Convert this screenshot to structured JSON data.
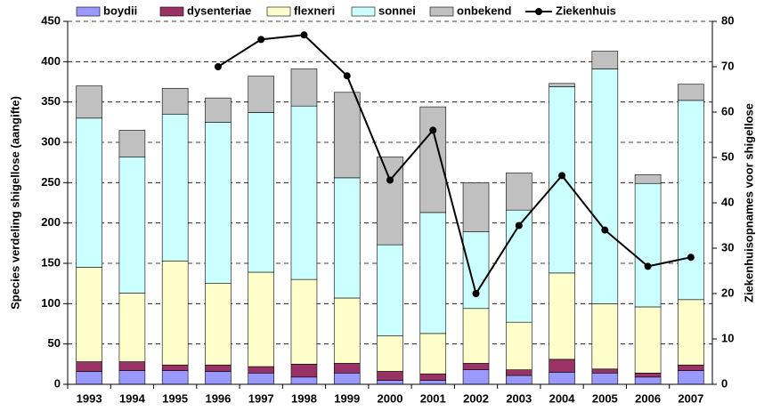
{
  "chart_data": {
    "type": "bar",
    "y_label": "Species verdeling shigellose (aangifte)",
    "y2_label": "Ziekenhuisopnames voor shigellose",
    "categories": [
      "1993",
      "1994",
      "1995",
      "1996",
      "1997",
      "1998",
      "1999",
      "2000",
      "2001",
      "2002",
      "2003",
      "2004",
      "2005",
      "2006",
      "2007"
    ],
    "series": [
      {
        "name": "boydii",
        "color": "#9999ff",
        "values": [
          16,
          17,
          17,
          16,
          14,
          9,
          14,
          5,
          5,
          18,
          11,
          15,
          14,
          9,
          17
        ]
      },
      {
        "name": "dysenteriae",
        "color": "#993366",
        "values": [
          12,
          11,
          7,
          8,
          8,
          16,
          12,
          11,
          8,
          8,
          7,
          16,
          5,
          5,
          7
        ]
      },
      {
        "name": "flexneri",
        "color": "#ffffcc",
        "values": [
          117,
          85,
          129,
          101,
          117,
          105,
          81,
          44,
          50,
          68,
          59,
          107,
          81,
          82,
          81
        ]
      },
      {
        "name": "sonnei",
        "color": "#ccffff",
        "values": [
          185,
          169,
          182,
          200,
          198,
          215,
          149,
          113,
          150,
          95,
          139,
          231,
          291,
          153,
          247
        ]
      },
      {
        "name": "onbekend",
        "color": "#c0c0c0",
        "values": [
          40,
          33,
          32,
          30,
          45,
          46,
          106,
          109,
          131,
          61,
          46,
          4,
          22,
          11,
          20
        ]
      },
      {
        "name": "Ziekenhuis",
        "color": "#000000",
        "type": "line",
        "axis": "y2",
        "values": [
          null,
          null,
          null,
          70,
          76,
          77,
          68,
          45,
          56,
          20,
          35,
          46,
          34,
          26,
          28
        ]
      }
    ],
    "ylim": [
      0,
      450
    ],
    "yticks": [
      0,
      50,
      100,
      150,
      200,
      250,
      300,
      350,
      400,
      450
    ],
    "y2lim": [
      0,
      80
    ],
    "y2ticks": [
      0,
      10,
      20,
      30,
      40,
      50,
      60,
      70,
      80
    ],
    "grid": true
  }
}
